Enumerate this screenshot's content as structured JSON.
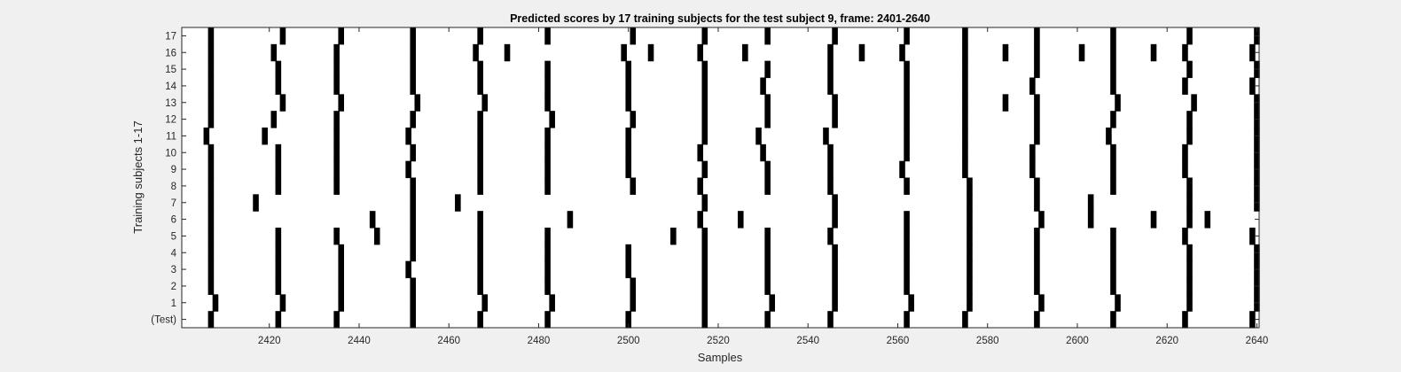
{
  "chart_data": {
    "type": "heatmap",
    "title": "Predicted scores by 17 training subjects for the test subject 9, frame: 2401-2640",
    "xlabel": "Samples",
    "ylabel": "Training subjects 1-17",
    "xlim": [
      2401,
      2640
    ],
    "x_ticks": [
      2420,
      2440,
      2460,
      2480,
      2500,
      2520,
      2540,
      2560,
      2580,
      2600,
      2620,
      2640
    ],
    "y_tick_labels": [
      "(Test)",
      "1",
      "2",
      "3",
      "4",
      "5",
      "6",
      "7",
      "8",
      "9",
      "10",
      "11",
      "12",
      "13",
      "14",
      "15",
      "16",
      "17"
    ],
    "colors": {
      "background": "#f0f0f0",
      "plot": "#ffffff",
      "mark": "#000000",
      "axis": "#262626"
    },
    "grid": false,
    "rows": [
      {
        "label": "(Test)",
        "samples": [
          2407,
          2422,
          2435,
          2452,
          2467,
          2482,
          2500,
          2517,
          2531,
          2545,
          2562,
          2575,
          2591,
          2608,
          2624,
          2639
        ]
      },
      {
        "label": "1",
        "samples": [
          2408,
          2423,
          2436,
          2452,
          2468,
          2483,
          2501,
          2517,
          2532,
          2546,
          2563,
          2576,
          2592,
          2609,
          2625,
          2640
        ]
      },
      {
        "label": "2",
        "samples": [
          2407,
          2422,
          2436,
          2452,
          2467,
          2482,
          2501,
          2517,
          2531,
          2546,
          2562,
          2576,
          2591,
          2608,
          2625,
          2640
        ]
      },
      {
        "label": "3",
        "samples": [
          2407,
          2422,
          2436,
          2451,
          2467,
          2482,
          2500,
          2517,
          2531,
          2546,
          2562,
          2576,
          2591,
          2608,
          2625,
          2640
        ]
      },
      {
        "label": "4",
        "samples": [
          2407,
          2422,
          2436,
          2452,
          2467,
          2482,
          2500,
          2517,
          2531,
          2546,
          2562,
          2576,
          2591,
          2608,
          2625,
          2640
        ]
      },
      {
        "label": "5",
        "samples": [
          2407,
          2422,
          2435,
          2444,
          2452,
          2467,
          2482,
          2510,
          2517,
          2531,
          2545,
          2562,
          2576,
          2591,
          2608,
          2624,
          2639
        ]
      },
      {
        "label": "6",
        "samples": [
          2407,
          2443,
          2452,
          2467,
          2487,
          2516,
          2525,
          2546,
          2562,
          2576,
          2592,
          2603,
          2617,
          2625,
          2629
        ]
      },
      {
        "label": "7",
        "samples": [
          2407,
          2417,
          2452,
          2462,
          2517,
          2546,
          2576,
          2591,
          2603,
          2625,
          2640
        ]
      },
      {
        "label": "8",
        "samples": [
          2407,
          2422,
          2435,
          2452,
          2467,
          2482,
          2501,
          2516,
          2531,
          2545,
          2562,
          2576,
          2591,
          2608,
          2625,
          2640
        ]
      },
      {
        "label": "9",
        "samples": [
          2407,
          2422,
          2435,
          2451,
          2467,
          2482,
          2500,
          2517,
          2531,
          2545,
          2561,
          2575,
          2590,
          2608,
          2624,
          2640
        ]
      },
      {
        "label": "10",
        "samples": [
          2407,
          2422,
          2435,
          2452,
          2467,
          2482,
          2500,
          2516,
          2530,
          2545,
          2562,
          2575,
          2590,
          2608,
          2624,
          2640
        ]
      },
      {
        "label": "11",
        "samples": [
          2406,
          2419,
          2435,
          2451,
          2467,
          2482,
          2500,
          2517,
          2529,
          2544,
          2562,
          2575,
          2591,
          2607,
          2625,
          2640
        ]
      },
      {
        "label": "12",
        "samples": [
          2407,
          2421,
          2435,
          2452,
          2467,
          2483,
          2501,
          2517,
          2531,
          2546,
          2562,
          2575,
          2591,
          2608,
          2625,
          2640
        ]
      },
      {
        "label": "13",
        "samples": [
          2407,
          2423,
          2436,
          2453,
          2468,
          2482,
          2500,
          2517,
          2531,
          2546,
          2562,
          2575,
          2584,
          2591,
          2609,
          2626,
          2640
        ]
      },
      {
        "label": "14",
        "samples": [
          2407,
          2422,
          2435,
          2452,
          2467,
          2482,
          2500,
          2517,
          2530,
          2545,
          2562,
          2575,
          2590,
          2608,
          2624,
          2639
        ]
      },
      {
        "label": "15",
        "samples": [
          2407,
          2422,
          2435,
          2452,
          2467,
          2482,
          2500,
          2517,
          2531,
          2545,
          2562,
          2575,
          2591,
          2608,
          2625,
          2640
        ]
      },
      {
        "label": "16",
        "samples": [
          2407,
          2421,
          2435,
          2452,
          2466,
          2473,
          2499,
          2505,
          2516,
          2526,
          2545,
          2552,
          2561,
          2575,
          2584,
          2591,
          2601,
          2608,
          2617,
          2624,
          2639
        ]
      },
      {
        "label": "17",
        "samples": [
          2407,
          2423,
          2436,
          2452,
          2467,
          2482,
          2501,
          2517,
          2531,
          2546,
          2562,
          2575,
          2591,
          2608,
          2625,
          2640
        ]
      }
    ]
  }
}
